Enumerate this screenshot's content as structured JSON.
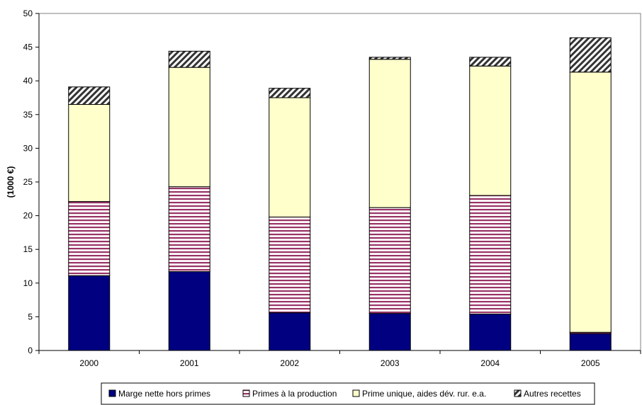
{
  "chart_data": {
    "type": "bar",
    "stacked": true,
    "categories": [
      "2000",
      "2001",
      "2002",
      "2003",
      "2004",
      "2005"
    ],
    "ylabel": "(1000 €)",
    "ylim": [
      0,
      50
    ],
    "yticks": [
      0,
      5,
      10,
      15,
      20,
      25,
      30,
      35,
      40,
      45,
      50
    ],
    "grid": false,
    "legend_position": "bottom",
    "series": [
      {
        "name": "Marge nette hors primes",
        "values": [
          11.1,
          11.7,
          5.6,
          5.5,
          5.4,
          2.5
        ],
        "color": "#000080",
        "pattern": "solid"
      },
      {
        "name": "Primes à la production",
        "values": [
          11.0,
          12.6,
          14.2,
          15.7,
          17.6,
          0.2
        ],
        "color": "#993366",
        "pattern": "horizontal-stripes"
      },
      {
        "name": "Prime unique, aides dév. rur. e.a.",
        "values": [
          14.4,
          17.7,
          17.7,
          22.0,
          19.2,
          38.6
        ],
        "color": "#FFFFCC",
        "pattern": "solid"
      },
      {
        "name": "Autres recettes",
        "values": [
          2.6,
          2.4,
          1.4,
          0.3,
          1.3,
          5.1
        ],
        "color": "#333333",
        "pattern": "diagonal-hatch"
      }
    ]
  }
}
